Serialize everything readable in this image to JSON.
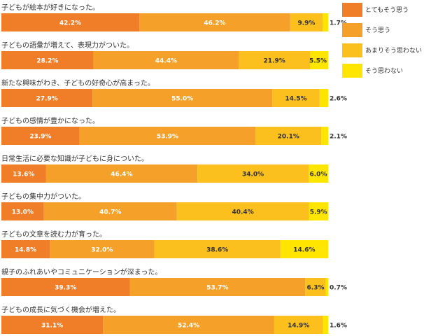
{
  "chart_data": {
    "type": "bar",
    "orientation": "horizontal",
    "stacked": true,
    "categories": [
      "子どもが絵本が好きになった。",
      "子どもの語彙が増えて、表現力がついた。",
      "新たな興味がわき、子どもの好奇心が高まった。",
      "子どもの感情が豊かになった。",
      "日常生活に必要な知識が子どもに身についた。",
      "子どもの集中力がついた。",
      "子どもの文章を読む力が育った。",
      "親子のふれあいやコミュニケーションが深まった。",
      "子どもの成長に気づく機会が増えた。"
    ],
    "series": [
      {
        "name": "とてもそう思う",
        "color": "#f07d28",
        "label_color": "#ffffff",
        "values": [
          42.2,
          28.2,
          27.9,
          23.9,
          13.6,
          13.0,
          14.8,
          39.3,
          31.1
        ],
        "labels": [
          "42.2%",
          "28.2%",
          "27.9%",
          "23.9%",
          "13.6%",
          "13.0%",
          "14.8%",
          "39.3%",
          "31.1%"
        ]
      },
      {
        "name": "そう思う",
        "color": "#f5a028",
        "label_color": "#ffffff",
        "values": [
          46.2,
          44.4,
          55.0,
          53.9,
          46.4,
          40.7,
          32.0,
          53.7,
          52.4
        ],
        "labels": [
          "46.2%",
          "44.4%",
          "55.0%",
          "53.9%",
          "46.4%",
          "40.7%",
          "32.0%",
          "53.7%",
          "52.4%"
        ]
      },
      {
        "name": "あまりそう思わない",
        "color": "#fbc01e",
        "label_color": "#333333",
        "values": [
          9.9,
          21.9,
          14.5,
          20.1,
          34.0,
          40.4,
          38.6,
          6.3,
          14.9
        ],
        "labels": [
          "9.9%",
          "21.9%",
          "14.5%",
          "20.1%",
          "34.0%",
          "40.4%",
          "38.6%",
          "6.3%",
          "14.9%"
        ]
      },
      {
        "name": "そう思わない",
        "color": "#ffe500",
        "label_color": "#333333",
        "values": [
          1.7,
          5.5,
          2.6,
          2.1,
          6.0,
          5.9,
          14.6,
          0.7,
          1.6
        ],
        "labels": [
          "1.7%",
          "5.5%",
          "2.6%",
          "2.1%",
          "6.0%",
          "5.9%",
          "14.6%",
          "0.7%",
          "1.6%"
        ]
      }
    ],
    "xlim": [
      0,
      100
    ],
    "legend": "top-right",
    "grid": false
  }
}
